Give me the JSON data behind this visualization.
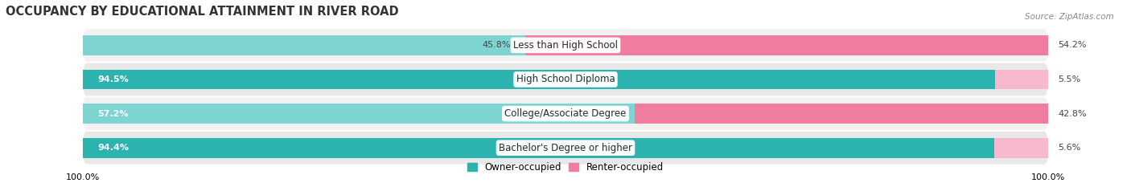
{
  "title": "OCCUPANCY BY EDUCATIONAL ATTAINMENT IN RIVER ROAD",
  "source": "Source: ZipAtlas.com",
  "categories": [
    "Less than High School",
    "High School Diploma",
    "College/Associate Degree",
    "Bachelor's Degree or higher"
  ],
  "owner_pct": [
    45.8,
    94.5,
    57.2,
    94.4
  ],
  "renter_pct": [
    54.2,
    5.5,
    42.8,
    5.6
  ],
  "owner_color": "#2ab3af",
  "renter_color": "#f07ca0",
  "owner_color_light": "#7dd4d1",
  "renter_color_light": "#f8b8ce",
  "bar_height": 0.58,
  "title_fontsize": 10.5,
  "label_fontsize": 8.5,
  "value_fontsize": 8.0,
  "legend_fontsize": 8.5,
  "source_fontsize": 7.5,
  "bg_color": "#f0f0f0",
  "row_bg_dark": "#e8e8e8",
  "row_bg_light": "#f2f2f2"
}
